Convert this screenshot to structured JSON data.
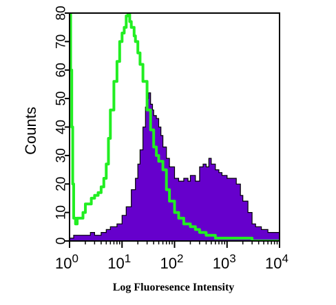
{
  "chart_data": {
    "type": "area",
    "xlabel": "Log Fluoresence Intensity",
    "ylabel": "Counts",
    "x_scale": "log",
    "xlim": [
      1,
      10000
    ],
    "ylim": [
      0,
      80
    ],
    "x_ticks": [
      {
        "base": "10",
        "exp": "0",
        "value": 1
      },
      {
        "base": "10",
        "exp": "1",
        "value": 10
      },
      {
        "base": "10",
        "exp": "2",
        "value": 100
      },
      {
        "base": "10",
        "exp": "3",
        "value": 1000
      },
      {
        "base": "10",
        "exp": "4",
        "value": 10000
      }
    ],
    "y_ticks": [
      "0",
      "10",
      "20",
      "30",
      "40",
      "50",
      "60",
      "70",
      "80"
    ],
    "y_tick_values": [
      0,
      10,
      20,
      30,
      40,
      50,
      60,
      70,
      80
    ],
    "grid": false,
    "series": [
      {
        "style": "filled",
        "color": "#6600cc",
        "x": [
          1,
          1.2,
          1.5,
          2,
          2.5,
          3,
          4,
          5,
          6,
          7,
          8,
          10,
          12,
          15,
          18,
          20,
          22,
          25,
          28,
          30,
          32,
          35,
          38,
          40,
          45,
          50,
          55,
          60,
          70,
          80,
          100,
          120,
          150,
          180,
          200,
          250,
          300,
          350,
          400,
          450,
          500,
          600,
          700,
          800,
          1000,
          1200,
          1500,
          1800,
          2000,
          2500,
          3000,
          3500,
          4000,
          4500,
          5000,
          6000,
          7000,
          8000,
          9000,
          10000
        ],
        "y": [
          1,
          2,
          2,
          2,
          3,
          2,
          3,
          4,
          5,
          5,
          6,
          9,
          12,
          18,
          22,
          27,
          32,
          40,
          47,
          50,
          52,
          48,
          46,
          44,
          43,
          40,
          37,
          33,
          29,
          26,
          22,
          21,
          22,
          21,
          23,
          21,
          26,
          27,
          26,
          29,
          27,
          25,
          24,
          23,
          22,
          22,
          20,
          16,
          14,
          10,
          6,
          5,
          5,
          4,
          4,
          3,
          3,
          3,
          3,
          2
        ]
      },
      {
        "style": "line",
        "color": "#22ee22",
        "x": [
          1,
          1.05,
          1.1,
          1.15,
          1.2,
          1.3,
          1.4,
          1.6,
          1.8,
          2,
          2.3,
          2.6,
          3,
          3.5,
          4,
          4.5,
          5,
          5.5,
          6,
          7,
          8,
          9,
          10,
          11,
          12,
          13,
          14,
          15,
          17,
          18,
          20,
          22,
          25,
          30,
          35,
          40,
          45,
          50,
          60,
          70,
          80,
          100,
          120,
          150,
          200,
          250,
          300,
          400,
          500,
          600,
          800,
          1000,
          1500,
          2000,
          3000,
          5000,
          7000,
          10000
        ],
        "y": [
          80,
          60,
          40,
          20,
          8,
          6,
          8,
          8,
          10,
          13,
          13,
          15,
          16,
          17,
          19,
          22,
          27,
          36,
          46,
          56,
          63,
          70,
          73,
          75,
          79,
          80,
          77,
          75,
          72,
          70,
          66,
          62,
          56,
          46,
          39,
          33,
          30,
          28,
          25,
          18,
          14,
          10,
          8,
          6,
          5,
          4,
          3,
          2,
          2,
          1,
          1,
          1,
          1,
          1,
          0,
          0,
          0,
          0
        ]
      }
    ]
  }
}
